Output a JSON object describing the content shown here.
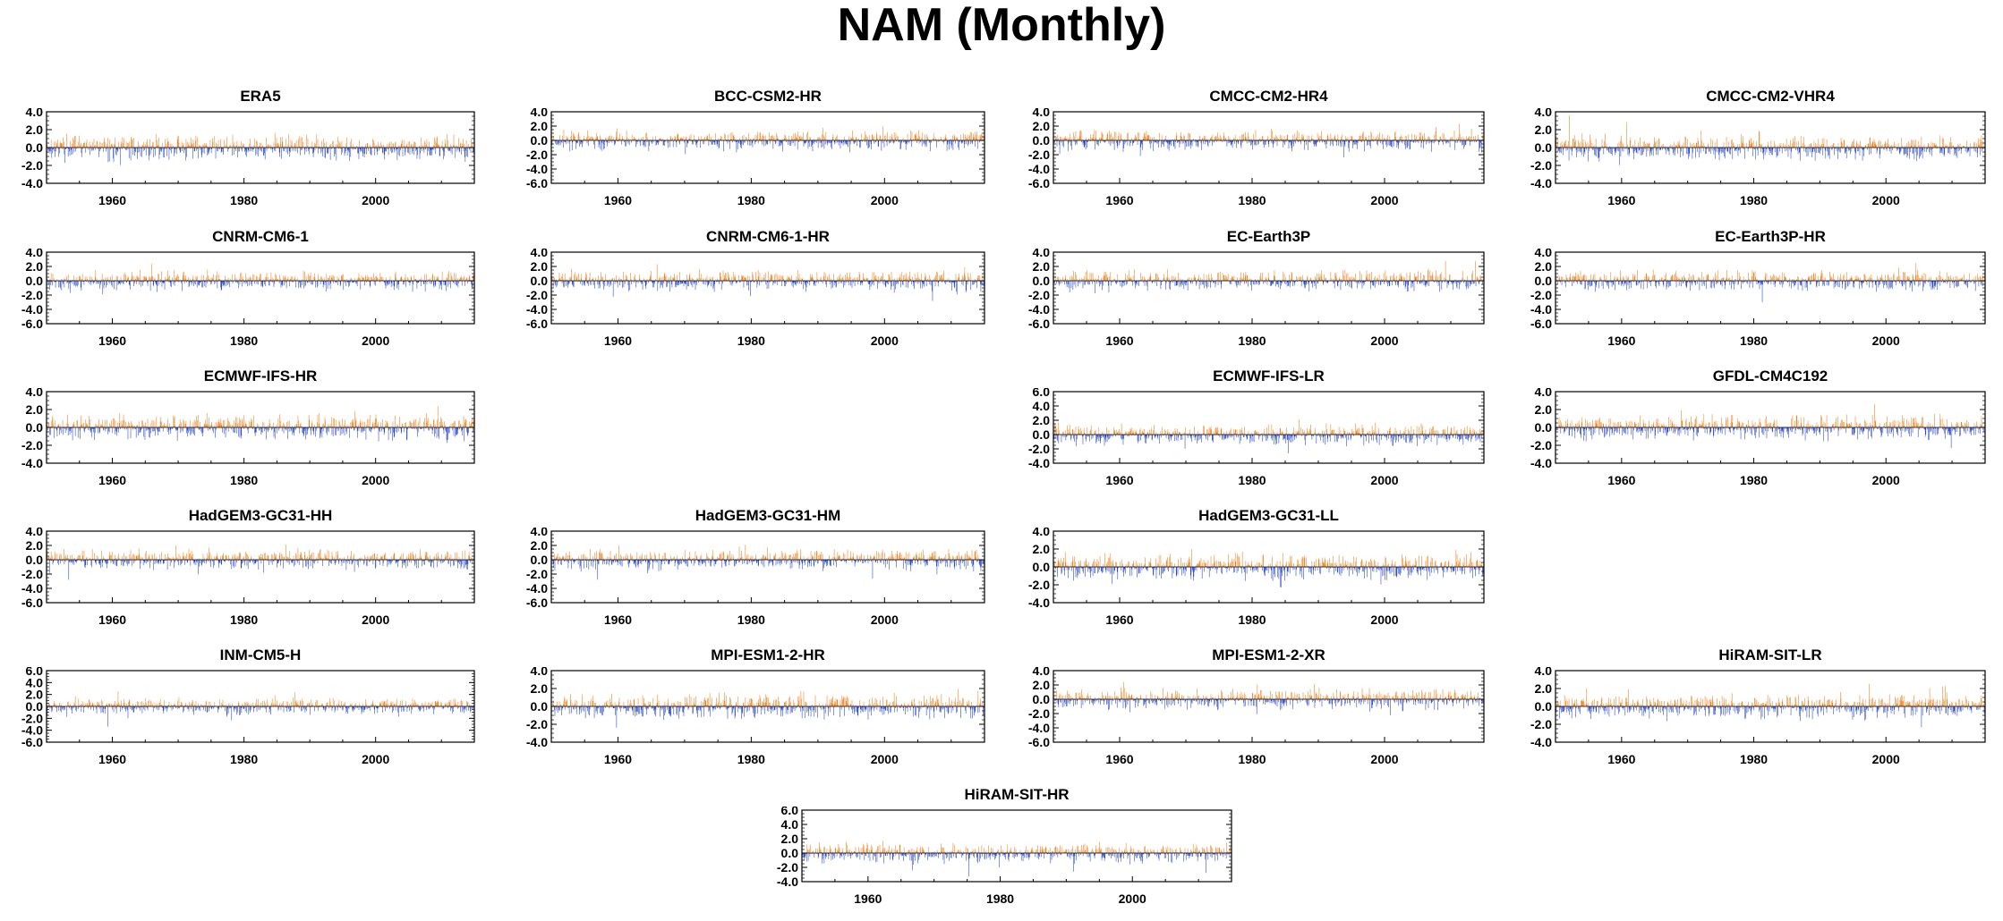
{
  "figure": {
    "title": "NAM (Monthly)"
  },
  "colors": {
    "positive": "#f07c12",
    "negative": "#1f3fcc",
    "axis": "#000000"
  },
  "chart_data": [
    {
      "type": "bar",
      "title": "ERA5",
      "x_start": 1950,
      "x_end": 2014,
      "xticks": [
        "1960",
        "1980",
        "2000"
      ],
      "yticks": [
        "4.0",
        "2.0",
        "0.0",
        "-2.0",
        "-4.0"
      ],
      "ylim": [
        -4,
        4
      ],
      "values_note": ""
    },
    {
      "type": "bar",
      "title": "BCC-CSM2-HR",
      "x_start": 1950,
      "x_end": 2014,
      "xticks": [
        "1960",
        "1980",
        "2000"
      ],
      "yticks": [
        "4.0",
        "2.0",
        "0.0",
        "-2.0",
        "-4.0",
        "-6.0"
      ],
      "ylim": [
        -6,
        4
      ]
    },
    {
      "type": "bar",
      "title": "CMCC-CM2-HR4",
      "x_start": 1950,
      "x_end": 2014,
      "xticks": [
        "1960",
        "1980",
        "2000"
      ],
      "yticks": [
        "4.0",
        "2.0",
        "0.0",
        "-2.0",
        "-4.0",
        "-6.0"
      ],
      "ylim": [
        -6,
        4
      ]
    },
    {
      "type": "bar",
      "title": "CMCC-CM2-VHR4",
      "x_start": 1950,
      "x_end": 2014,
      "xticks": [
        "1960",
        "1980",
        "2000"
      ],
      "yticks": [
        "4.0",
        "2.0",
        "0.0",
        "-2.0",
        "-4.0"
      ],
      "ylim": [
        -4,
        4
      ]
    },
    {
      "type": "bar",
      "title": "CNRM-CM6-1",
      "x_start": 1950,
      "x_end": 2014,
      "xticks": [
        "1960",
        "1980",
        "2000"
      ],
      "yticks": [
        "4.0",
        "2.0",
        "0.0",
        "-2.0",
        "-4.0",
        "-6.0"
      ],
      "ylim": [
        -6,
        4
      ]
    },
    {
      "type": "bar",
      "title": "CNRM-CM6-1-HR",
      "x_start": 1950,
      "x_end": 2014,
      "xticks": [
        "1960",
        "1980",
        "2000"
      ],
      "yticks": [
        "4.0",
        "2.0",
        "0.0",
        "-2.0",
        "-4.0",
        "-6.0"
      ],
      "ylim": [
        -6,
        4
      ]
    },
    {
      "type": "bar",
      "title": "EC-Earth3P",
      "x_start": 1950,
      "x_end": 2014,
      "xticks": [
        "1960",
        "1980",
        "2000"
      ],
      "yticks": [
        "4.0",
        "2.0",
        "0.0",
        "-2.0",
        "-4.0",
        "-6.0"
      ],
      "ylim": [
        -6,
        4
      ]
    },
    {
      "type": "bar",
      "title": "EC-Earth3P-HR",
      "x_start": 1950,
      "x_end": 2014,
      "xticks": [
        "1960",
        "1980",
        "2000"
      ],
      "yticks": [
        "4.0",
        "2.0",
        "0.0",
        "-2.0",
        "-4.0",
        "-6.0"
      ],
      "ylim": [
        -6,
        4
      ]
    },
    {
      "type": "bar",
      "title": "ECMWF-IFS-HR",
      "x_start": 1950,
      "x_end": 2014,
      "xticks": [
        "1960",
        "1980",
        "2000"
      ],
      "yticks": [
        "4.0",
        "2.0",
        "0.0",
        "-2.0",
        "-4.0"
      ],
      "ylim": [
        -4,
        4
      ]
    },
    {
      "type": "bar",
      "title": "ECMWF-IFS-LR",
      "x_start": 1950,
      "x_end": 2014,
      "xticks": [
        "1960",
        "1980",
        "2000"
      ],
      "yticks": [
        "6.0",
        "4.0",
        "2.0",
        "0.0",
        "-2.0",
        "-4.0"
      ],
      "ylim": [
        -4,
        6
      ]
    },
    {
      "type": "bar",
      "title": "GFDL-CM4C192",
      "x_start": 1950,
      "x_end": 2014,
      "xticks": [
        "1960",
        "1980",
        "2000"
      ],
      "yticks": [
        "4.0",
        "2.0",
        "0.0",
        "-2.0",
        "-4.0"
      ],
      "ylim": [
        -4,
        4
      ]
    },
    {
      "type": "bar",
      "title": "HadGEM3-GC31-HH",
      "x_start": 1950,
      "x_end": 2014,
      "xticks": [
        "1960",
        "1980",
        "2000"
      ],
      "yticks": [
        "4.0",
        "2.0",
        "0.0",
        "-2.0",
        "-4.0",
        "-6.0"
      ],
      "ylim": [
        -6,
        4
      ]
    },
    {
      "type": "bar",
      "title": "HadGEM3-GC31-HM",
      "x_start": 1950,
      "x_end": 2014,
      "xticks": [
        "1960",
        "1980",
        "2000"
      ],
      "yticks": [
        "4.0",
        "2.0",
        "0.0",
        "-2.0",
        "-4.0",
        "-6.0"
      ],
      "ylim": [
        -6,
        4
      ]
    },
    {
      "type": "bar",
      "title": "HadGEM3-GC31-LL",
      "x_start": 1950,
      "x_end": 2014,
      "xticks": [
        "1960",
        "1980",
        "2000"
      ],
      "yticks": [
        "4.0",
        "2.0",
        "0.0",
        "-2.0",
        "-4.0"
      ],
      "ylim": [
        -4,
        4
      ]
    },
    {
      "type": "bar",
      "title": "INM-CM5-H",
      "x_start": 1950,
      "x_end": 2014,
      "xticks": [
        "1960",
        "1980",
        "2000"
      ],
      "yticks": [
        "6.0",
        "4.0",
        "2.0",
        "0.0",
        "-2.0",
        "-4.0",
        "-6.0"
      ],
      "ylim": [
        -6,
        6
      ]
    },
    {
      "type": "bar",
      "title": "MPI-ESM1-2-HR",
      "x_start": 1950,
      "x_end": 2014,
      "xticks": [
        "1960",
        "1980",
        "2000"
      ],
      "yticks": [
        "4.0",
        "2.0",
        "0.0",
        "-2.0",
        "-4.0"
      ],
      "ylim": [
        -4,
        4
      ]
    },
    {
      "type": "bar",
      "title": "MPI-ESM1-2-XR",
      "x_start": 1950,
      "x_end": 2014,
      "xticks": [
        "1960",
        "1980",
        "2000"
      ],
      "yticks": [
        "4.0",
        "2.0",
        "0.0",
        "-2.0",
        "-4.0",
        "-6.0"
      ],
      "ylim": [
        -6,
        4
      ]
    },
    {
      "type": "bar",
      "title": "HiRAM-SIT-LR",
      "x_start": 1950,
      "x_end": 2014,
      "xticks": [
        "1960",
        "1980",
        "2000"
      ],
      "yticks": [
        "4.0",
        "2.0",
        "0.0",
        "-2.0",
        "-4.0"
      ],
      "ylim": [
        -4,
        4
      ]
    },
    {
      "type": "bar",
      "title": "HiRAM-SIT-HR",
      "x_start": 1950,
      "x_end": 2014,
      "xticks": [
        "1960",
        "1980",
        "2000"
      ],
      "yticks": [
        "6.0",
        "4.0",
        "2.0",
        "0.0",
        "-2.0",
        "-4.0"
      ],
      "ylim": [
        -4,
        6
      ]
    }
  ]
}
